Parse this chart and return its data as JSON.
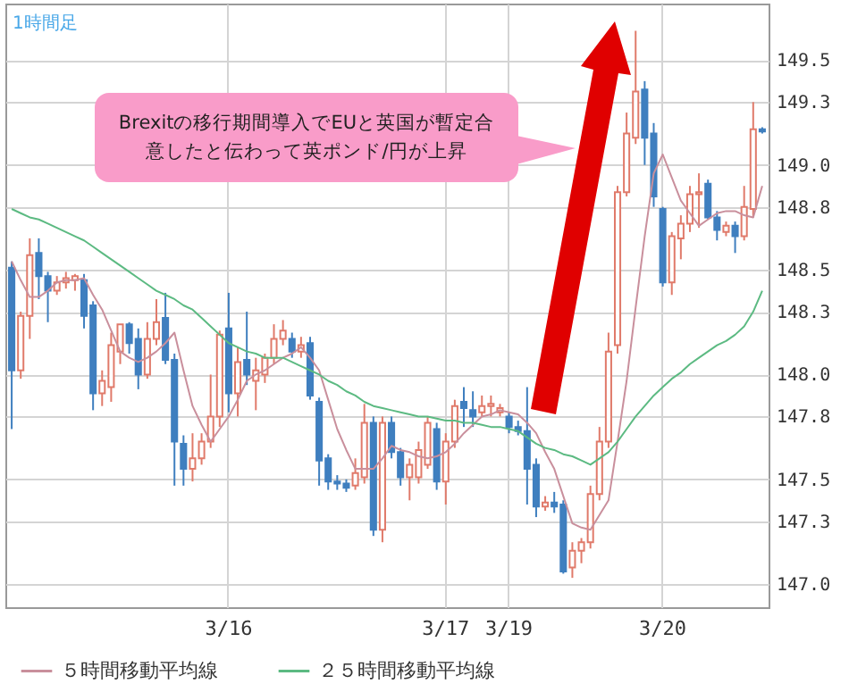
{
  "chart_data": {
    "type": "candlestick",
    "title": "1時間足",
    "annotations": [
      "Brexitの移行期間導入でEUと英国が暫定合意したと伝わって英ポンド/円が上昇"
    ],
    "categories": [
      null,
      null,
      null,
      null,
      null,
      null,
      null,
      null,
      null,
      null,
      null,
      null,
      null,
      null,
      null,
      null,
      null,
      null,
      null,
      null,
      null,
      null,
      null,
      null,
      "3/16",
      null,
      null,
      null,
      null,
      null,
      null,
      null,
      null,
      null,
      null,
      null,
      null,
      null,
      null,
      null,
      null,
      null,
      null,
      null,
      null,
      null,
      null,
      null,
      "3/17",
      null,
      null,
      null,
      null,
      null,
      null,
      "3/19",
      null,
      null,
      null,
      null,
      null,
      null,
      null,
      null,
      null,
      null,
      null,
      null,
      null,
      null,
      null,
      null,
      "3/20",
      null,
      null,
      null,
      null,
      null,
      null,
      null,
      null,
      null,
      null,
      null
    ],
    "ohlc": [
      [
        148.51,
        148.54,
        147.74,
        148.02
      ],
      [
        148.02,
        148.3,
        147.98,
        148.28
      ],
      [
        148.28,
        148.65,
        148.17,
        148.57
      ],
      [
        148.58,
        148.65,
        148.36,
        148.47
      ],
      [
        148.47,
        148.49,
        148.25,
        148.4
      ],
      [
        148.4,
        148.47,
        148.38,
        148.44
      ],
      [
        148.44,
        148.49,
        148.41,
        148.46
      ],
      [
        148.45,
        148.48,
        148.4,
        148.47
      ],
      [
        148.45,
        148.48,
        148.22,
        148.28
      ],
      [
        148.33,
        148.35,
        147.83,
        147.91
      ],
      [
        147.91,
        148.02,
        147.85,
        147.97
      ],
      [
        147.94,
        148.2,
        147.87,
        148.14
      ],
      [
        148.11,
        148.24,
        148.05,
        148.24
      ],
      [
        148.24,
        148.25,
        148.1,
        148.15
      ],
      [
        148.17,
        148.22,
        147.93,
        148.0
      ],
      [
        148.0,
        148.25,
        147.98,
        148.17
      ],
      [
        148.17,
        148.36,
        148.14,
        148.25
      ],
      [
        148.27,
        148.39,
        148.05,
        148.07
      ],
      [
        148.07,
        148.1,
        147.47,
        147.68
      ],
      [
        147.67,
        147.71,
        147.47,
        147.55
      ],
      [
        147.55,
        147.72,
        147.49,
        147.6
      ],
      [
        147.6,
        147.72,
        147.57,
        147.68
      ],
      [
        147.68,
        148.0,
        147.65,
        147.8
      ],
      [
        147.8,
        148.21,
        147.75,
        148.19
      ],
      [
        148.22,
        148.39,
        147.82,
        147.91
      ],
      [
        147.91,
        148.13,
        147.8,
        148.06
      ],
      [
        148.07,
        148.3,
        147.95,
        148.0
      ],
      [
        147.97,
        148.08,
        147.83,
        148.02
      ],
      [
        148.0,
        148.1,
        147.96,
        148.08
      ],
      [
        148.08,
        148.24,
        148.05,
        148.17
      ],
      [
        148.17,
        148.26,
        148.14,
        148.21
      ],
      [
        148.17,
        148.2,
        148.08,
        148.11
      ],
      [
        148.11,
        148.18,
        148.08,
        148.14
      ],
      [
        148.15,
        148.18,
        147.88,
        147.9
      ],
      [
        147.87,
        147.89,
        147.47,
        147.59
      ],
      [
        147.6,
        147.62,
        147.45,
        147.49
      ],
      [
        147.49,
        147.52,
        147.45,
        147.48
      ],
      [
        147.48,
        147.5,
        147.44,
        147.46
      ],
      [
        147.47,
        147.6,
        147.45,
        147.53
      ],
      [
        147.51,
        147.86,
        147.48,
        147.77
      ],
      [
        147.77,
        147.8,
        147.23,
        147.26
      ],
      [
        147.26,
        147.8,
        147.2,
        147.77
      ],
      [
        147.77,
        147.8,
        147.6,
        147.63
      ],
      [
        147.63,
        147.65,
        147.47,
        147.51
      ],
      [
        147.51,
        147.6,
        147.4,
        147.57
      ],
      [
        147.51,
        147.68,
        147.48,
        147.64
      ],
      [
        147.57,
        147.8,
        147.55,
        147.77
      ],
      [
        147.74,
        147.77,
        147.45,
        147.49
      ],
      [
        147.49,
        147.72,
        147.38,
        147.68
      ],
      [
        147.68,
        147.88,
        147.65,
        147.85
      ],
      [
        147.87,
        147.94,
        147.75,
        147.84
      ],
      [
        147.83,
        147.92,
        147.75,
        147.8
      ],
      [
        147.82,
        147.9,
        147.8,
        147.85
      ],
      [
        147.85,
        147.9,
        147.8,
        147.86
      ],
      [
        147.82,
        147.86,
        147.8,
        147.84
      ],
      [
        147.8,
        147.82,
        147.72,
        147.75
      ],
      [
        147.75,
        147.78,
        147.71,
        147.73
      ],
      [
        147.73,
        147.94,
        147.38,
        147.55
      ],
      [
        147.57,
        147.6,
        147.32,
        147.37
      ],
      [
        147.37,
        147.42,
        147.35,
        147.39
      ],
      [
        147.39,
        147.44,
        147.34,
        147.37
      ],
      [
        147.38,
        147.4,
        147.05,
        147.06
      ],
      [
        147.08,
        147.2,
        147.03,
        147.16
      ],
      [
        147.16,
        147.22,
        147.1,
        147.2
      ],
      [
        147.2,
        147.47,
        147.17,
        147.43
      ],
      [
        147.43,
        147.75,
        147.4,
        147.68
      ],
      [
        147.68,
        148.2,
        147.65,
        148.11
      ],
      [
        148.14,
        148.9,
        148.1,
        148.87
      ],
      [
        148.87,
        149.25,
        148.85,
        149.15
      ],
      [
        149.13,
        149.64,
        149.1,
        149.35
      ],
      [
        149.36,
        149.4,
        149.0,
        149.13
      ],
      [
        149.15,
        149.2,
        148.8,
        148.85
      ],
      [
        148.79,
        148.8,
        148.42,
        148.44
      ],
      [
        148.44,
        148.68,
        148.38,
        148.66
      ],
      [
        148.65,
        148.76,
        148.55,
        148.72
      ],
      [
        148.72,
        148.9,
        148.68,
        148.86
      ],
      [
        148.86,
        148.96,
        148.7,
        148.87
      ],
      [
        148.91,
        148.93,
        148.74,
        148.75
      ],
      [
        148.75,
        148.78,
        148.64,
        148.69
      ],
      [
        148.68,
        148.73,
        148.66,
        148.71
      ],
      [
        148.71,
        148.73,
        148.58,
        148.66
      ],
      [
        148.66,
        148.9,
        148.64,
        148.8
      ],
      [
        148.79,
        149.3,
        148.75,
        149.17
      ],
      [
        149.17,
        149.18,
        149.15,
        149.16
      ]
    ],
    "series": [
      {
        "name": "５時間移動平均線",
        "type": "line",
        "color": "#c98f9c",
        "values": [
          148.54,
          148.45,
          148.37,
          148.37,
          148.4,
          148.44,
          148.45,
          148.45,
          148.46,
          148.38,
          148.31,
          148.21,
          148.11,
          148.08,
          148.06,
          148.08,
          148.11,
          148.15,
          148.2,
          148.02,
          147.85,
          147.76,
          147.68,
          147.74,
          147.8,
          147.88,
          147.97,
          148.0,
          148.02,
          148.05,
          148.08,
          148.1,
          148.13,
          148.08,
          148.02,
          147.88,
          147.74,
          147.64,
          147.55,
          147.55,
          147.55,
          147.6,
          147.66,
          147.64,
          147.63,
          147.61,
          147.6,
          147.61,
          147.63,
          147.67,
          147.72,
          147.76,
          147.8,
          147.81,
          147.83,
          147.82,
          147.81,
          147.77,
          147.72,
          147.63,
          147.55,
          147.42,
          147.29,
          147.27,
          147.26,
          147.33,
          147.4,
          147.68,
          147.97,
          148.32,
          148.66,
          148.96,
          149.05,
          148.94,
          148.83,
          148.77,
          148.71,
          148.74,
          148.77,
          148.78,
          148.78,
          148.76,
          148.75,
          148.9
        ]
      },
      {
        "name": "２５時間移動平均線",
        "type": "line",
        "color": "#5cba82",
        "values": [
          148.79,
          148.77,
          148.75,
          148.74,
          148.72,
          148.7,
          148.68,
          148.66,
          148.64,
          148.61,
          148.58,
          148.55,
          148.52,
          148.49,
          148.46,
          148.43,
          148.4,
          148.38,
          148.36,
          148.33,
          148.31,
          148.27,
          148.23,
          148.19,
          148.15,
          148.13,
          148.11,
          148.1,
          148.08,
          148.08,
          148.08,
          148.06,
          148.04,
          148.02,
          148.0,
          147.97,
          147.95,
          147.92,
          147.9,
          147.87,
          147.85,
          147.84,
          147.83,
          147.82,
          147.81,
          147.8,
          147.8,
          147.79,
          147.78,
          147.78,
          147.77,
          147.77,
          147.76,
          147.75,
          147.75,
          147.74,
          147.73,
          147.7,
          147.67,
          147.65,
          147.64,
          147.62,
          147.61,
          147.59,
          147.57,
          147.6,
          147.63,
          147.68,
          147.74,
          147.8,
          147.85,
          147.9,
          147.94,
          147.98,
          148.01,
          148.05,
          148.08,
          148.11,
          148.14,
          148.16,
          148.19,
          148.23,
          148.3,
          148.4
        ]
      }
    ],
    "ylim": [
      146.89,
      149.77
    ],
    "yticks": [
      {
        "value": 147,
        "label": "147.0"
      },
      147.3,
      147.5,
      147.8,
      {
        "value": 148,
        "label": "148.0"
      },
      148.3,
      148.5,
      148.8,
      {
        "value": 149,
        "label": "149.0"
      },
      149.3,
      149.5
    ],
    "grid": true,
    "legend": "bottom"
  }
}
